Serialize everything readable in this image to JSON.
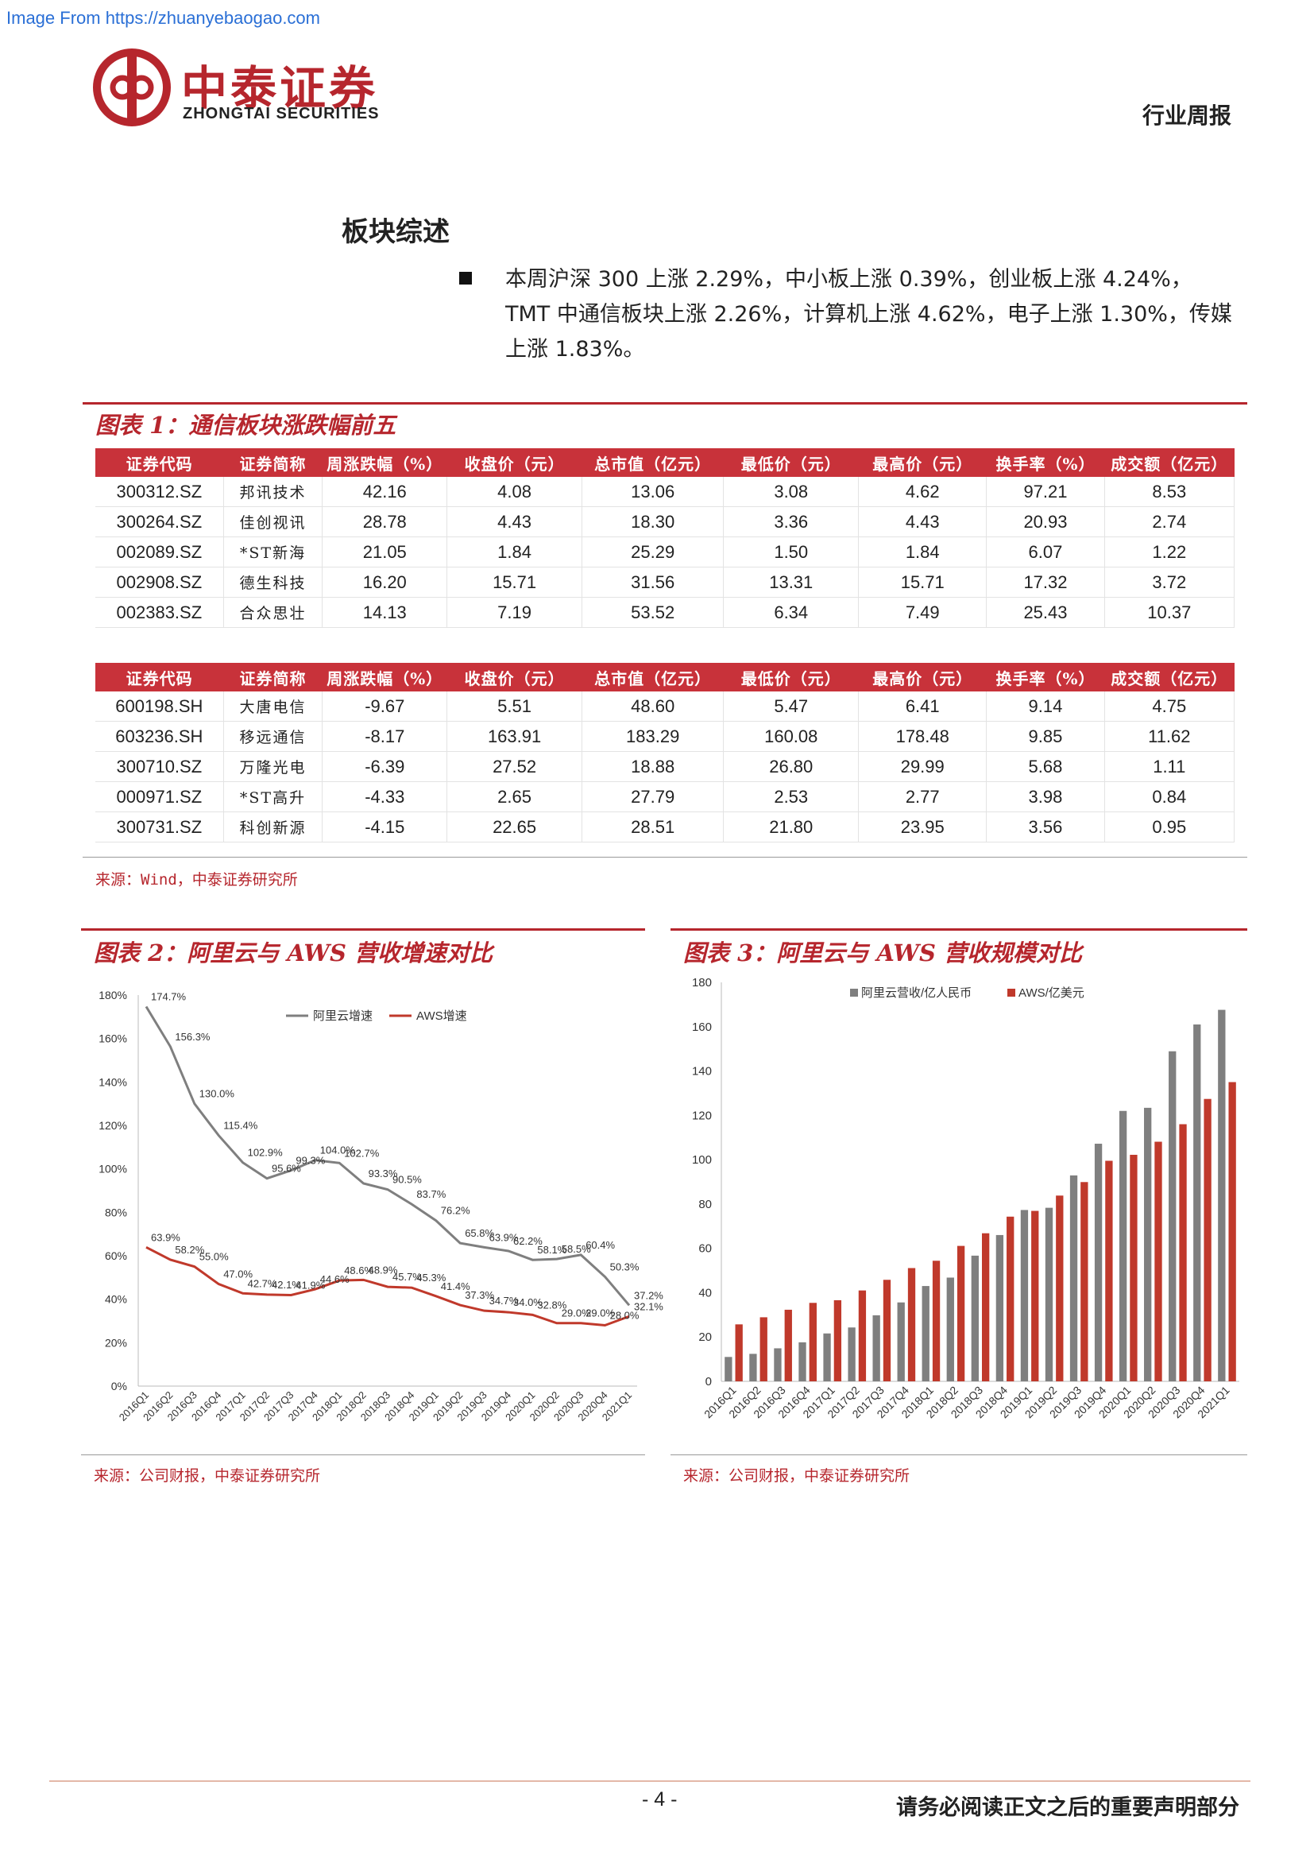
{
  "watermark": "Image From https://zhuanyebaogao.com",
  "header": {
    "company_cn": "中泰证券",
    "company_en": "ZHONGTAI SECURITIES",
    "report_type": "行业周报"
  },
  "section_title": "板块综述",
  "summary": "本周沪深 300 上涨 2.29%，中小板上涨 0.39%，创业板上涨 4.24%，TMT 中通信板块上涨 2.26%，计算机上涨 4.62%，电子上涨 1.30%，传媒上涨 1.83%。",
  "figure1": {
    "title": "图表 1：通信板块涨跌幅前五",
    "columns": [
      "证券代码",
      "证券简称",
      "周涨跌幅（%）",
      "收盘价（元）",
      "总市值（亿元）",
      "最低价（元）",
      "最高价（元）",
      "换手率（%）",
      "成交额（亿元）"
    ],
    "top_rows": [
      [
        "300312.SZ",
        "邦讯技术",
        "42.16",
        "4.08",
        "13.06",
        "3.08",
        "4.62",
        "97.21",
        "8.53"
      ],
      [
        "300264.SZ",
        "佳创视讯",
        "28.78",
        "4.43",
        "18.30",
        "3.36",
        "4.43",
        "20.93",
        "2.74"
      ],
      [
        "002089.SZ",
        "*ST新海",
        "21.05",
        "1.84",
        "25.29",
        "1.50",
        "1.84",
        "6.07",
        "1.22"
      ],
      [
        "002908.SZ",
        "德生科技",
        "16.20",
        "15.71",
        "31.56",
        "13.31",
        "15.71",
        "17.32",
        "3.72"
      ],
      [
        "002383.SZ",
        "合众思壮",
        "14.13",
        "7.19",
        "53.52",
        "6.34",
        "7.49",
        "25.43",
        "10.37"
      ]
    ],
    "bottom_rows": [
      [
        "600198.SH",
        "大唐电信",
        "-9.67",
        "5.51",
        "48.60",
        "5.47",
        "6.41",
        "9.14",
        "4.75"
      ],
      [
        "603236.SH",
        "移远通信",
        "-8.17",
        "163.91",
        "183.29",
        "160.08",
        "178.48",
        "9.85",
        "11.62"
      ],
      [
        "300710.SZ",
        "万隆光电",
        "-6.39",
        "27.52",
        "18.88",
        "26.80",
        "29.99",
        "5.68",
        "1.11"
      ],
      [
        "000971.SZ",
        "*ST高升",
        "-4.33",
        "2.65",
        "27.79",
        "2.53",
        "2.77",
        "3.98",
        "0.84"
      ],
      [
        "300731.SZ",
        "科创新源",
        "-4.15",
        "22.65",
        "28.51",
        "21.80",
        "23.95",
        "3.56",
        "0.95"
      ]
    ],
    "source": "来源：Wind，中泰证券研究所"
  },
  "figure2": {
    "title": "图表 2：阿里云与 AWS 营收增速对比",
    "source": "来源：公司财报，中泰证券研究所",
    "chart_data": {
      "type": "line",
      "categories": [
        "2016Q1",
        "2016Q2",
        "2016Q3",
        "2016Q4",
        "2017Q1",
        "2017Q2",
        "2017Q3",
        "2017Q4",
        "2018Q1",
        "2018Q2",
        "2018Q3",
        "2018Q4",
        "2019Q1",
        "2019Q2",
        "2019Q3",
        "2019Q4",
        "2020Q1",
        "2020Q2",
        "2020Q3",
        "2020Q4",
        "2021Q1"
      ],
      "series": [
        {
          "name": "阿里云增速",
          "color": "#7f7f7f",
          "values": [
            174.7,
            156.3,
            130.0,
            115.4,
            102.9,
            95.6,
            99.3,
            104.0,
            102.7,
            93.3,
            90.5,
            83.7,
            76.2,
            65.8,
            63.9,
            62.2,
            58.1,
            58.5,
            60.4,
            50.3,
            37.2
          ],
          "labels": [
            "174.7%",
            "156.3%",
            "130.0%",
            "115.4%",
            "102.9%",
            "95.6%",
            "99.3%",
            "104.0%",
            "102.7%",
            "93.3%",
            "90.5%",
            "83.7%",
            "76.2%",
            "65.8%",
            "63.9%",
            "62.2%",
            "58.1%",
            "58.5%",
            "60.4%",
            "50.3%",
            "37.2%"
          ]
        },
        {
          "name": "AWS增速",
          "color": "#c0392b",
          "values": [
            63.9,
            58.2,
            55.0,
            47.0,
            42.7,
            42.1,
            41.9,
            44.6,
            48.6,
            48.9,
            45.7,
            45.3,
            41.4,
            37.3,
            34.7,
            34.0,
            32.8,
            29.0,
            29.0,
            28.0,
            32.1
          ],
          "labels": [
            "63.9%",
            "58.2%",
            "55.0%",
            "47.0%",
            "42.7%",
            "42.1%",
            "41.9%",
            "44.6%",
            "48.6%",
            "48.9%",
            "45.7%",
            "45.3%",
            "41.4%",
            "37.3%",
            "34.7%",
            "34.0%",
            "32.8%",
            "29.0%",
            "29.0%",
            "28.0%",
            "32.1%"
          ]
        }
      ],
      "ylim": [
        0,
        180
      ],
      "yticks": [
        "0%",
        "20%",
        "40%",
        "60%",
        "80%",
        "100%",
        "120%",
        "140%",
        "160%",
        "180%"
      ],
      "legend": "top-center"
    }
  },
  "figure3": {
    "title": "图表 3：阿里云与 AWS 营收规模对比",
    "source": "来源：公司财报，中泰证券研究所",
    "chart_data": {
      "type": "bar",
      "categories": [
        "2016Q1",
        "2016Q2",
        "2016Q3",
        "2016Q4",
        "2017Q1",
        "2017Q2",
        "2017Q3",
        "2017Q4",
        "2018Q1",
        "2018Q2",
        "2018Q3",
        "2018Q4",
        "2019Q1",
        "2019Q2",
        "2019Q3",
        "2019Q4",
        "2020Q1",
        "2020Q2",
        "2020Q3",
        "2020Q4",
        "2021Q1"
      ],
      "series": [
        {
          "name": "阿里云营收/亿人民币",
          "color": "#7f7f7f",
          "values": [
            11,
            12.4,
            14.9,
            17.6,
            21.6,
            24.3,
            29.8,
            35.6,
            43.0,
            46.8,
            56.7,
            66.0,
            77.3,
            78.3,
            92.9,
            107.2,
            122.0,
            123.4,
            148.9,
            161.0,
            167.6
          ]
        },
        {
          "name": "AWS/亿美元",
          "color": "#c0392b",
          "values": [
            25.7,
            28.9,
            32.3,
            35.4,
            36.6,
            41.0,
            45.8,
            51.1,
            54.4,
            61.1,
            66.8,
            74.3,
            76.9,
            83.8,
            89.9,
            99.5,
            102.2,
            108.1,
            116.0,
            127.4,
            135.0
          ]
        }
      ],
      "ylim": [
        0,
        180
      ],
      "yticks": [
        "0",
        "20",
        "40",
        "60",
        "80",
        "100",
        "120",
        "140",
        "160",
        "180"
      ],
      "legend": "top-center"
    }
  },
  "footer": {
    "page": "- 4 -",
    "disclaimer": "请务必阅读正文之后的重要声明部分"
  }
}
